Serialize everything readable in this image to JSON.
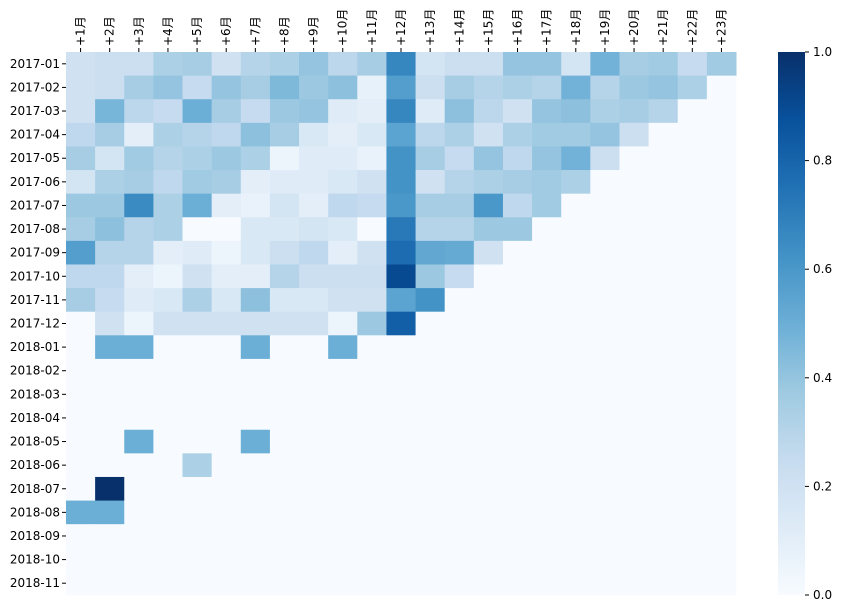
{
  "chart_data": {
    "type": "heatmap",
    "title": "",
    "xlabel": "",
    "ylabel": "",
    "colormap": "Blues",
    "color_low": "#f7fbff",
    "color_high": "#08306b",
    "x": [
      "+1月",
      "+2月",
      "+3月",
      "+4月",
      "+5月",
      "+6月",
      "+7月",
      "+8月",
      "+9月",
      "+10月",
      "+11月",
      "+12月",
      "+13月",
      "+14月",
      "+15月",
      "+16月",
      "+17月",
      "+18月",
      "+19月",
      "+20月",
      "+21月",
      "+22月",
      "+23月"
    ],
    "y": [
      "2017-01",
      "2017-02",
      "2017-03",
      "2017-04",
      "2017-05",
      "2017-06",
      "2017-07",
      "2017-08",
      "2017-09",
      "2017-10",
      "2017-11",
      "2017-12",
      "2018-01",
      "2018-02",
      "2018-03",
      "2018-04",
      "2018-05",
      "2018-06",
      "2018-07",
      "2018-08",
      "2018-09",
      "2018-10",
      "2018-11"
    ],
    "values": [
      [
        0.2,
        0.22,
        0.22,
        0.33,
        0.35,
        0.2,
        0.3,
        0.33,
        0.4,
        0.28,
        0.35,
        0.67,
        0.18,
        0.22,
        0.22,
        0.4,
        0.4,
        0.18,
        0.48,
        0.35,
        0.37,
        0.25,
        0.37
      ],
      [
        0.2,
        0.22,
        0.35,
        0.4,
        0.25,
        0.4,
        0.35,
        0.45,
        0.38,
        0.42,
        0.08,
        0.57,
        0.22,
        0.35,
        0.3,
        0.33,
        0.3,
        0.48,
        0.3,
        0.38,
        0.4,
        0.33,
        0
      ],
      [
        0.2,
        0.47,
        0.28,
        0.25,
        0.5,
        0.35,
        0.25,
        0.38,
        0.4,
        0.12,
        0.1,
        0.67,
        0.12,
        0.42,
        0.28,
        0.2,
        0.4,
        0.42,
        0.33,
        0.35,
        0.3,
        0,
        0
      ],
      [
        0.27,
        0.35,
        0.1,
        0.33,
        0.3,
        0.27,
        0.42,
        0.35,
        0.15,
        0.1,
        0.15,
        0.55,
        0.28,
        0.33,
        0.2,
        0.33,
        0.37,
        0.37,
        0.4,
        0.22,
        0,
        0,
        0
      ],
      [
        0.35,
        0.18,
        0.37,
        0.3,
        0.33,
        0.38,
        0.33,
        0.05,
        0.12,
        0.12,
        0.07,
        0.62,
        0.35,
        0.25,
        0.4,
        0.27,
        0.4,
        0.48,
        0.22,
        0,
        0,
        0,
        0
      ],
      [
        0.18,
        0.33,
        0.35,
        0.27,
        0.37,
        0.35,
        0.1,
        0.12,
        0.12,
        0.15,
        0.2,
        0.62,
        0.2,
        0.3,
        0.33,
        0.35,
        0.37,
        0.33,
        0,
        0,
        0,
        0,
        0
      ],
      [
        0.38,
        0.38,
        0.65,
        0.33,
        0.5,
        0.1,
        0.07,
        0.18,
        0.1,
        0.27,
        0.25,
        0.6,
        0.35,
        0.35,
        0.6,
        0.27,
        0.37,
        0,
        0,
        0,
        0,
        0,
        0
      ],
      [
        0.35,
        0.42,
        0.3,
        0.33,
        0,
        0,
        0.15,
        0.15,
        0.18,
        0.15,
        0,
        0.72,
        0.3,
        0.3,
        0.38,
        0.38,
        0,
        0,
        0,
        0,
        0,
        0,
        0
      ],
      [
        0.57,
        0.3,
        0.3,
        0.1,
        0.12,
        0.05,
        0.15,
        0.22,
        0.27,
        0.1,
        0.2,
        0.77,
        0.53,
        0.52,
        0.2,
        0,
        0,
        0,
        0,
        0,
        0,
        0,
        0
      ],
      [
        0.27,
        0.27,
        0.1,
        0.05,
        0.2,
        0.1,
        0.1,
        0.3,
        0.22,
        0.22,
        0.22,
        0.9,
        0.38,
        0.25,
        0,
        0,
        0,
        0,
        0,
        0,
        0,
        0,
        0
      ],
      [
        0.35,
        0.25,
        0.12,
        0.15,
        0.33,
        0.15,
        0.42,
        0.15,
        0.15,
        0.2,
        0.2,
        0.55,
        0.62,
        0,
        0,
        0,
        0,
        0,
        0,
        0,
        0,
        0,
        0
      ],
      [
        0,
        0.2,
        0.05,
        0.2,
        0.2,
        0.2,
        0.2,
        0.2,
        0.2,
        0.05,
        0.38,
        0.82,
        0,
        0,
        0,
        0,
        0,
        0,
        0,
        0,
        0,
        0,
        0
      ],
      [
        0,
        0.5,
        0.5,
        0,
        0,
        0,
        0.5,
        0,
        0,
        0.5,
        0,
        0,
        0,
        0,
        0,
        0,
        0,
        0,
        0,
        0,
        0,
        0,
        0
      ],
      [
        0,
        0,
        0,
        0,
        0,
        0,
        0,
        0,
        0,
        0,
        0,
        0,
        0,
        0,
        0,
        0,
        0,
        0,
        0,
        0,
        0,
        0,
        0
      ],
      [
        0,
        0,
        0,
        0,
        0,
        0,
        0,
        0,
        0,
        0,
        0,
        0,
        0,
        0,
        0,
        0,
        0,
        0,
        0,
        0,
        0,
        0,
        0
      ],
      [
        0,
        0,
        0,
        0,
        0,
        0,
        0,
        0,
        0,
        0,
        0,
        0,
        0,
        0,
        0,
        0,
        0,
        0,
        0,
        0,
        0,
        0,
        0
      ],
      [
        0,
        0,
        0.5,
        0,
        0,
        0,
        0.5,
        0,
        0,
        0,
        0,
        0,
        0,
        0,
        0,
        0,
        0,
        0,
        0,
        0,
        0,
        0,
        0
      ],
      [
        0,
        0,
        0,
        0,
        0.33,
        0,
        0,
        0,
        0,
        0,
        0,
        0,
        0,
        0,
        0,
        0,
        0,
        0,
        0,
        0,
        0,
        0,
        0
      ],
      [
        0,
        1.0,
        0,
        0,
        0,
        0,
        0,
        0,
        0,
        0,
        0,
        0,
        0,
        0,
        0,
        0,
        0,
        0,
        0,
        0,
        0,
        0,
        0
      ],
      [
        0.5,
        0.5,
        0,
        0,
        0,
        0,
        0,
        0,
        0,
        0,
        0,
        0,
        0,
        0,
        0,
        0,
        0,
        0,
        0,
        0,
        0,
        0,
        0
      ],
      [
        0,
        0,
        0,
        0,
        0,
        0,
        0,
        0,
        0,
        0,
        0,
        0,
        0,
        0,
        0,
        0,
        0,
        0,
        0,
        0,
        0,
        0,
        0
      ],
      [
        0,
        0,
        0,
        0,
        0,
        0,
        0,
        0,
        0,
        0,
        0,
        0,
        0,
        0,
        0,
        0,
        0,
        0,
        0,
        0,
        0,
        0,
        0
      ],
      [
        0,
        0,
        0,
        0,
        0,
        0,
        0,
        0,
        0,
        0,
        0,
        0,
        0,
        0,
        0,
        0,
        0,
        0,
        0,
        0,
        0,
        0,
        0
      ]
    ],
    "colorbar": {
      "range": [
        0,
        1
      ],
      "ticks": [
        0.0,
        0.2,
        0.4,
        0.6,
        0.8,
        1.0
      ],
      "tick_labels": [
        "0.0",
        "0.2",
        "0.4",
        "0.6",
        "0.8",
        "1.0"
      ]
    }
  }
}
